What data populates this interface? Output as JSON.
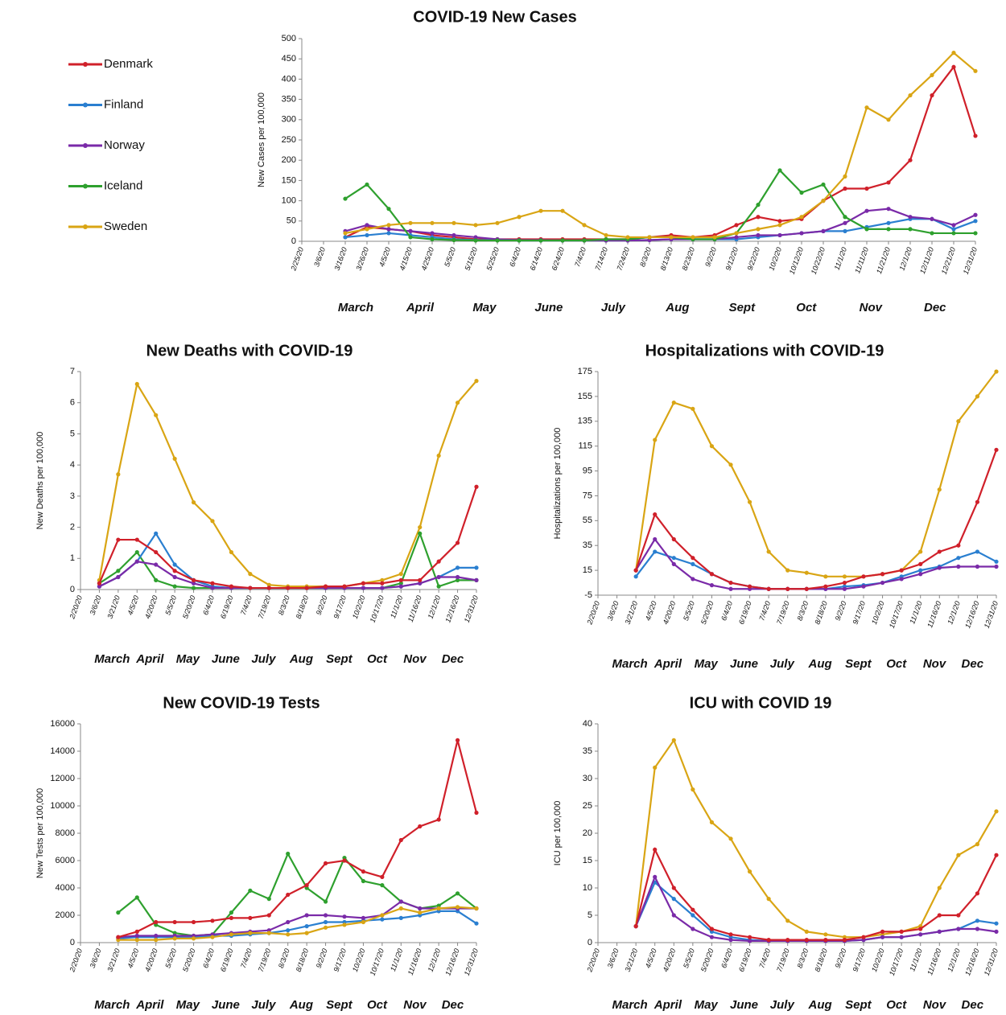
{
  "chart_data": [
    {
      "type": "line",
      "title": "COVID-19 New Cases",
      "y_label": "New Cases per 100,000",
      "legend": "left",
      "categories": [
        "2/25/20",
        "3/6/20",
        "3/16/20",
        "3/26/20",
        "4/5/20",
        "4/15/20",
        "4/25/20",
        "5/5/20",
        "5/15/20",
        "5/25/20",
        "6/4/20",
        "6/14/20",
        "6/24/20",
        "7/4/20",
        "7/14/20",
        "7/24/20",
        "8/3/20",
        "8/13/20",
        "8/23/20",
        "9/2/20",
        "9/12/20",
        "9/22/20",
        "10/2/20",
        "10/12/20",
        "10/22/20",
        "11/1/20",
        "11/11/20",
        "11/21/20",
        "12/1/20",
        "12/11/20",
        "12/21/20",
        "12/31/20"
      ],
      "month_labels": [
        "March",
        "April",
        "May",
        "June",
        "July",
        "Aug",
        "Sept",
        "Oct",
        "Nov",
        "Dec"
      ],
      "ylim": [
        0,
        500
      ],
      "yticks": [
        0,
        50,
        100,
        150,
        200,
        250,
        300,
        350,
        400,
        450,
        500
      ],
      "series": [
        {
          "name": "Denmark",
          "color": "#d0202a",
          "values": [
            null,
            null,
            10,
            35,
            30,
            25,
            15,
            10,
            5,
            5,
            5,
            5,
            5,
            5,
            5,
            5,
            10,
            15,
            10,
            15,
            40,
            60,
            50,
            55,
            100,
            130,
            130,
            145,
            200,
            360,
            430,
            260
          ]
        },
        {
          "name": "Finland",
          "color": "#2a7fd0",
          "values": [
            null,
            null,
            10,
            15,
            20,
            15,
            10,
            5,
            3,
            3,
            2,
            2,
            2,
            2,
            2,
            2,
            3,
            5,
            5,
            5,
            5,
            10,
            15,
            20,
            25,
            25,
            35,
            45,
            55,
            55,
            30,
            50
          ]
        },
        {
          "name": "Norway",
          "color": "#7a2aa8",
          "values": [
            null,
            null,
            25,
            40,
            30,
            25,
            20,
            15,
            10,
            5,
            3,
            3,
            2,
            2,
            2,
            2,
            3,
            5,
            5,
            5,
            10,
            15,
            15,
            20,
            25,
            45,
            75,
            80,
            60,
            55,
            40,
            65
          ]
        },
        {
          "name": "Iceland",
          "color": "#2ea02e",
          "values": [
            null,
            null,
            105,
            140,
            80,
            10,
            5,
            3,
            2,
            2,
            2,
            2,
            2,
            2,
            5,
            5,
            10,
            10,
            5,
            5,
            20,
            90,
            175,
            120,
            140,
            60,
            30,
            30,
            30,
            20,
            20,
            20
          ]
        },
        {
          "name": "Sweden",
          "color": "#d9a514",
          "values": [
            null,
            null,
            20,
            30,
            40,
            45,
            45,
            45,
            40,
            45,
            60,
            75,
            75,
            40,
            15,
            10,
            10,
            10,
            10,
            10,
            20,
            30,
            40,
            60,
            100,
            160,
            330,
            300,
            360,
            410,
            465,
            420
          ]
        }
      ]
    },
    {
      "type": "line",
      "title": "New Deaths with COVID-19",
      "y_label": "New Deaths per 100,000",
      "categories": [
        "2/20/20",
        "3/6/20",
        "3/21/20",
        "4/5/20",
        "4/20/20",
        "5/5/20",
        "5/20/20",
        "6/4/20",
        "6/19/20",
        "7/4/20",
        "7/19/20",
        "8/3/20",
        "8/18/20",
        "9/2/20",
        "9/17/20",
        "10/2/20",
        "10/17/20",
        "11/1/20",
        "11/16/20",
        "12/1/20",
        "12/16/20",
        "12/31/20"
      ],
      "month_labels": [
        "March",
        "April",
        "May",
        "June",
        "July",
        "Aug",
        "Sept",
        "Oct",
        "Nov",
        "Dec"
      ],
      "ylim": [
        0,
        7
      ],
      "yticks": [
        0,
        1,
        2,
        3,
        4,
        5,
        6,
        7
      ],
      "series": [
        {
          "color": "#d9a514",
          "values": [
            null,
            0.3,
            3.7,
            6.6,
            5.6,
            4.2,
            2.8,
            2.2,
            1.2,
            0.5,
            0.15,
            0.1,
            0.1,
            0.1,
            0.1,
            0.2,
            0.3,
            0.5,
            2.0,
            4.3,
            6.0,
            6.7
          ]
        },
        {
          "color": "#2ea02e",
          "values": [
            null,
            0.2,
            0.6,
            1.2,
            0.3,
            0.1,
            0.05,
            0.05,
            0.05,
            0.05,
            0.05,
            0.05,
            0.05,
            0.05,
            0.05,
            0.05,
            0.05,
            0.2,
            1.8,
            0.1,
            0.3,
            0.3
          ]
        },
        {
          "color": "#2a7fd0",
          "values": [
            null,
            0.1,
            0.4,
            0.9,
            1.8,
            0.8,
            0.3,
            0.1,
            0.05,
            0.05,
            0.05,
            0.05,
            0.05,
            0.05,
            0.05,
            0.05,
            0.05,
            0.1,
            0.2,
            0.4,
            0.7,
            0.7
          ]
        },
        {
          "color": "#7a2aa8",
          "values": [
            null,
            0.1,
            0.4,
            0.9,
            0.8,
            0.4,
            0.2,
            0.05,
            0.05,
            0.05,
            0.05,
            0.05,
            0.05,
            0.05,
            0.05,
            0.05,
            0.05,
            0.1,
            0.2,
            0.4,
            0.4,
            0.3
          ]
        },
        {
          "color": "#d0202a",
          "values": [
            null,
            0.2,
            1.6,
            1.6,
            1.2,
            0.6,
            0.3,
            0.2,
            0.1,
            0.05,
            0.05,
            0.05,
            0.05,
            0.1,
            0.1,
            0.2,
            0.2,
            0.3,
            0.3,
            0.9,
            1.5,
            3.3
          ]
        }
      ]
    },
    {
      "type": "line",
      "title": "Hospitalizations with COVID-19",
      "y_label": "Hospitalizations per 100,000",
      "categories": [
        "2/20/20",
        "3/6/20",
        "3/21/20",
        "4/5/20",
        "4/20/20",
        "5/5/20",
        "5/20/20",
        "6/4/20",
        "6/19/20",
        "7/4/20",
        "7/19/20",
        "8/3/20",
        "8/18/20",
        "9/2/20",
        "9/17/20",
        "10/2/20",
        "10/17/20",
        "11/1/20",
        "11/16/20",
        "12/1/20",
        "12/16/20",
        "12/31/20"
      ],
      "month_labels": [
        "March",
        "April",
        "May",
        "June",
        "July",
        "Aug",
        "Sept",
        "Oct",
        "Nov",
        "Dec"
      ],
      "ylim": [
        -5,
        175
      ],
      "yticks": [
        -5,
        15,
        35,
        55,
        75,
        95,
        115,
        135,
        155,
        175
      ],
      "series": [
        {
          "color": "#d9a514",
          "values": [
            null,
            null,
            15,
            120,
            150,
            145,
            115,
            100,
            70,
            30,
            15,
            13,
            10,
            10,
            10,
            12,
            15,
            30,
            80,
            135,
            155,
            175
          ]
        },
        {
          "color": "#2a7fd0",
          "values": [
            null,
            null,
            10,
            30,
            25,
            20,
            12,
            5,
            2,
            0,
            0,
            0,
            0,
            2,
            3,
            5,
            10,
            15,
            18,
            25,
            30,
            22
          ]
        },
        {
          "color": "#7a2aa8",
          "values": [
            null,
            null,
            15,
            40,
            20,
            8,
            3,
            0,
            0,
            0,
            0,
            0,
            0,
            0,
            2,
            5,
            8,
            12,
            17,
            18,
            18,
            18
          ]
        },
        {
          "color": "#d0202a",
          "values": [
            null,
            null,
            15,
            60,
            40,
            25,
            12,
            5,
            2,
            0,
            0,
            0,
            2,
            5,
            10,
            12,
            15,
            20,
            30,
            35,
            70,
            112
          ]
        }
      ]
    },
    {
      "type": "line",
      "title": "New COVID-19 Tests",
      "y_label": "New Tests per 100,000",
      "categories": [
        "2/20/20",
        "3/6/20",
        "3/21/20",
        "4/5/20",
        "4/20/20",
        "5/5/20",
        "5/20/20",
        "6/4/20",
        "6/19/20",
        "7/4/20",
        "7/19/20",
        "8/3/20",
        "8/18/20",
        "9/2/20",
        "9/17/20",
        "10/2/20",
        "10/17/20",
        "11/1/20",
        "11/16/20",
        "12/1/20",
        "12/16/20",
        "12/31/20"
      ],
      "month_labels": [
        "March",
        "April",
        "May",
        "June",
        "July",
        "Aug",
        "Sept",
        "Oct",
        "Nov",
        "Dec"
      ],
      "ylim": [
        0,
        16000
      ],
      "yticks": [
        0,
        2000,
        4000,
        6000,
        8000,
        10000,
        12000,
        14000,
        16000
      ],
      "series": [
        {
          "color": "#2ea02e",
          "values": [
            null,
            null,
            2200,
            3300,
            1300,
            700,
            500,
            600,
            2200,
            3800,
            3200,
            6500,
            4000,
            3000,
            6200,
            4500,
            4200,
            3000,
            2500,
            2700,
            3600,
            2500
          ]
        },
        {
          "color": "#2a7fd0",
          "values": [
            null,
            null,
            300,
            400,
            400,
            400,
            400,
            500,
            500,
            600,
            700,
            900,
            1200,
            1500,
            1500,
            1600,
            1700,
            1800,
            2000,
            2300,
            2300,
            1400
          ]
        },
        {
          "color": "#7a2aa8",
          "values": [
            null,
            null,
            400,
            500,
            500,
            500,
            500,
            600,
            700,
            800,
            900,
            1500,
            2000,
            2000,
            1900,
            1800,
            2000,
            3000,
            2500,
            2500,
            2500,
            2500
          ]
        },
        {
          "color": "#d9a514",
          "values": [
            null,
            null,
            200,
            200,
            200,
            300,
            300,
            400,
            600,
            700,
            700,
            600,
            700,
            1100,
            1300,
            1500,
            2000,
            2500,
            2200,
            2500,
            2600,
            2500
          ]
        },
        {
          "color": "#d0202a",
          "values": [
            null,
            null,
            400,
            800,
            1500,
            1500,
            1500,
            1600,
            1800,
            1800,
            2000,
            3500,
            4200,
            5800,
            6000,
            5200,
            4800,
            7500,
            8500,
            9000,
            14800,
            9500
          ]
        }
      ]
    },
    {
      "type": "line",
      "title": "ICU with COVID 19",
      "y_label": "ICU per 100,000",
      "categories": [
        "2/20/20",
        "3/6/20",
        "3/21/20",
        "4/5/20",
        "4/20/20",
        "5/5/20",
        "5/20/20",
        "6/4/20",
        "6/19/20",
        "7/4/20",
        "7/19/20",
        "8/3/20",
        "8/18/20",
        "9/2/20",
        "9/17/20",
        "10/2/20",
        "10/17/20",
        "11/1/20",
        "11/16/20",
        "12/1/20",
        "12/16/20",
        "12/31/20"
      ],
      "month_labels": [
        "March",
        "April",
        "May",
        "June",
        "July",
        "Aug",
        "Sept",
        "Oct",
        "Nov",
        "Dec"
      ],
      "ylim": [
        0,
        40
      ],
      "yticks": [
        0,
        5,
        10,
        15,
        20,
        25,
        30,
        35,
        40
      ],
      "series": [
        {
          "color": "#d9a514",
          "values": [
            null,
            null,
            3,
            32,
            37,
            28,
            22,
            19,
            13,
            8,
            4,
            2,
            1.5,
            1,
            1,
            1.5,
            2,
            3,
            10,
            16,
            18,
            24
          ]
        },
        {
          "color": "#2a7fd0",
          "values": [
            null,
            null,
            3,
            11,
            8,
            5,
            2,
            1,
            0.5,
            0.3,
            0.3,
            0.3,
            0.3,
            0.3,
            0.5,
            1,
            1,
            1.5,
            2,
            2.5,
            4,
            3.5
          ]
        },
        {
          "color": "#7a2aa8",
          "values": [
            null,
            null,
            3,
            12,
            5,
            2.5,
            1,
            0.5,
            0.3,
            0.3,
            0.3,
            0.3,
            0.3,
            0.3,
            0.5,
            1,
            1,
            1.5,
            2,
            2.5,
            2.5,
            2
          ]
        },
        {
          "color": "#d0202a",
          "values": [
            null,
            null,
            3,
            17,
            10,
            6,
            2.5,
            1.5,
            1,
            0.5,
            0.5,
            0.5,
            0.5,
            0.5,
            1,
            2,
            2,
            2.5,
            5,
            5,
            9,
            16
          ]
        }
      ]
    }
  ]
}
